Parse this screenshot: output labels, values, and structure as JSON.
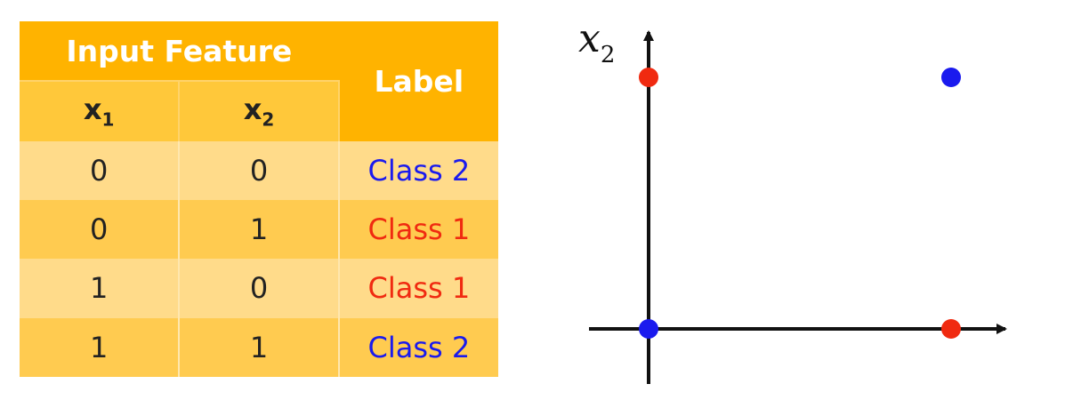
{
  "table": {
    "header_group": "Input Feature",
    "header_label": "Label",
    "col1": {
      "base": "x",
      "sub": "1"
    },
    "col2": {
      "base": "x",
      "sub": "2"
    },
    "rows": [
      {
        "x1": "0",
        "x2": "0",
        "label": "Class 2",
        "class": "class2"
      },
      {
        "x1": "0",
        "x2": "1",
        "label": "Class 1",
        "class": "class1"
      },
      {
        "x1": "1",
        "x2": "0",
        "label": "Class 1",
        "class": "class1"
      },
      {
        "x1": "1",
        "x2": "1",
        "label": "Class 2",
        "class": "class2"
      }
    ]
  },
  "plot": {
    "y_axis_label": {
      "base": "x",
      "sub": "2"
    },
    "colors": {
      "class1": "#f02a10",
      "class2": "#1a1aee",
      "axis": "#111111"
    },
    "points": [
      {
        "x": 0,
        "y": 0,
        "class": "class2"
      },
      {
        "x": 0,
        "y": 1,
        "class": "class1"
      },
      {
        "x": 1,
        "y": 0,
        "class": "class1"
      },
      {
        "x": 1,
        "y": 1,
        "class": "class2"
      }
    ]
  },
  "colors": {
    "header": "#FFB300",
    "subheader": "#FFC83A",
    "row_light": "#FFDB8A",
    "row_dark": "#FFCB50"
  }
}
